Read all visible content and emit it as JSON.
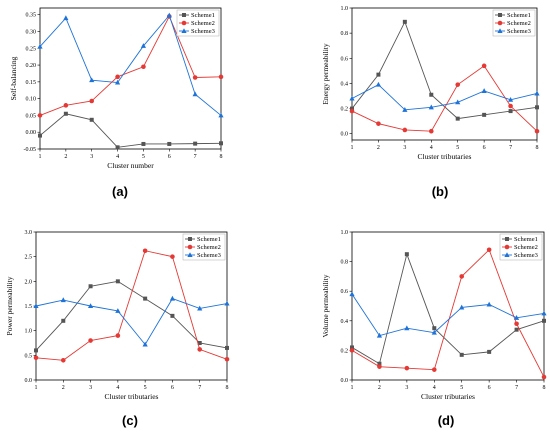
{
  "colors": {
    "scheme1": "#555555",
    "scheme2": "#e53935",
    "scheme3": "#1e73d8"
  },
  "chart_data": [
    {
      "type": "line",
      "caption": "(a)",
      "xlabel": "Cluster number",
      "ylabel": "Self-balancing",
      "xlim": [
        1,
        8
      ],
      "ylim": [
        -0.05,
        0.37
      ],
      "x": [
        1,
        2,
        3,
        4,
        5,
        6,
        7,
        8
      ],
      "xticks": [
        "1",
        "2",
        "3",
        "4",
        "5",
        "6",
        "7",
        "8"
      ],
      "yticks": [
        "-0.05",
        "0.00",
        "0.05",
        "0.10",
        "0.15",
        "0.20",
        "0.25",
        "0.30",
        "0.35"
      ],
      "legend": "top-right",
      "series": [
        {
          "name": "Scheme1",
          "marker": "square",
          "values": [
            -0.01,
            0.055,
            0.037,
            -0.045,
            -0.035,
            -0.035,
            -0.034,
            -0.033
          ]
        },
        {
          "name": "Scheme2",
          "marker": "circle",
          "values": [
            0.05,
            0.08,
            0.093,
            0.165,
            0.195,
            0.345,
            0.163,
            0.165
          ]
        },
        {
          "name": "Scheme3",
          "marker": "triangle",
          "values": [
            0.255,
            0.34,
            0.155,
            0.148,
            0.257,
            0.348,
            0.113,
            0.05
          ]
        }
      ]
    },
    {
      "type": "line",
      "caption": "(b)",
      "xlabel": "Cluster tributaries",
      "ylabel": "Energy permeability",
      "xlim": [
        1,
        8
      ],
      "ylim": [
        -0.05,
        1.0
      ],
      "x": [
        1,
        2,
        3,
        4,
        5,
        6,
        7,
        8
      ],
      "xticks": [
        "1",
        "2",
        "3",
        "4",
        "5",
        "6",
        "7",
        "8"
      ],
      "yticks": [
        "0.0",
        "0.2",
        "0.4",
        "0.6",
        "0.8",
        "1.0"
      ],
      "legend": "top-right",
      "series": [
        {
          "name": "Scheme1",
          "marker": "square",
          "values": [
            0.2,
            0.47,
            0.89,
            0.31,
            0.12,
            0.15,
            0.18,
            0.21
          ]
        },
        {
          "name": "Scheme2",
          "marker": "circle",
          "values": [
            0.18,
            0.08,
            0.03,
            0.02,
            0.39,
            0.54,
            0.22,
            0.02
          ]
        },
        {
          "name": "Scheme3",
          "marker": "triangle",
          "values": [
            0.28,
            0.39,
            0.19,
            0.21,
            0.25,
            0.34,
            0.27,
            0.32
          ]
        }
      ]
    },
    {
      "type": "line",
      "caption": "(c)",
      "xlabel": "Cluster tributaries",
      "ylabel": "Power permeability",
      "xlim": [
        1,
        8
      ],
      "ylim": [
        0.0,
        3.0
      ],
      "x": [
        1,
        2,
        3,
        4,
        5,
        6,
        7,
        8
      ],
      "xticks": [
        "1",
        "2",
        "3",
        "4",
        "5",
        "6",
        "7",
        "8"
      ],
      "yticks": [
        "0.0",
        "0.5",
        "1.0",
        "1.5",
        "2.0",
        "2.5",
        "3.0"
      ],
      "legend": "top-right",
      "series": [
        {
          "name": "Scheme1",
          "marker": "square",
          "values": [
            0.6,
            1.2,
            1.9,
            2.0,
            1.65,
            1.3,
            0.75,
            0.65
          ]
        },
        {
          "name": "Scheme2",
          "marker": "circle",
          "values": [
            0.45,
            0.4,
            0.8,
            0.9,
            2.62,
            2.5,
            0.62,
            0.42
          ]
        },
        {
          "name": "Scheme3",
          "marker": "triangle",
          "values": [
            1.5,
            1.62,
            1.5,
            1.4,
            0.72,
            1.65,
            1.45,
            1.55
          ]
        }
      ]
    },
    {
      "type": "line",
      "caption": "(d)",
      "xlabel": "Cluster tributaries",
      "ylabel": "Volume permeability",
      "xlim": [
        1,
        8
      ],
      "ylim": [
        0.0,
        1.0
      ],
      "x": [
        1,
        2,
        3,
        4,
        5,
        6,
        7,
        8
      ],
      "xticks": [
        "1",
        "2",
        "3",
        "4",
        "5",
        "6",
        "7",
        "8"
      ],
      "yticks": [
        "0.0",
        "0.2",
        "0.4",
        "0.6",
        "0.8",
        "1.0"
      ],
      "legend": "top-right",
      "series": [
        {
          "name": "Scheme1",
          "marker": "square",
          "values": [
            0.22,
            0.11,
            0.85,
            0.35,
            0.17,
            0.19,
            0.34,
            0.4
          ]
        },
        {
          "name": "Scheme2",
          "marker": "circle",
          "values": [
            0.2,
            0.09,
            0.08,
            0.07,
            0.7,
            0.88,
            0.38,
            0.02
          ]
        },
        {
          "name": "Scheme3",
          "marker": "triangle",
          "values": [
            0.58,
            0.3,
            0.35,
            0.32,
            0.49,
            0.51,
            0.42,
            0.45
          ]
        }
      ]
    }
  ]
}
